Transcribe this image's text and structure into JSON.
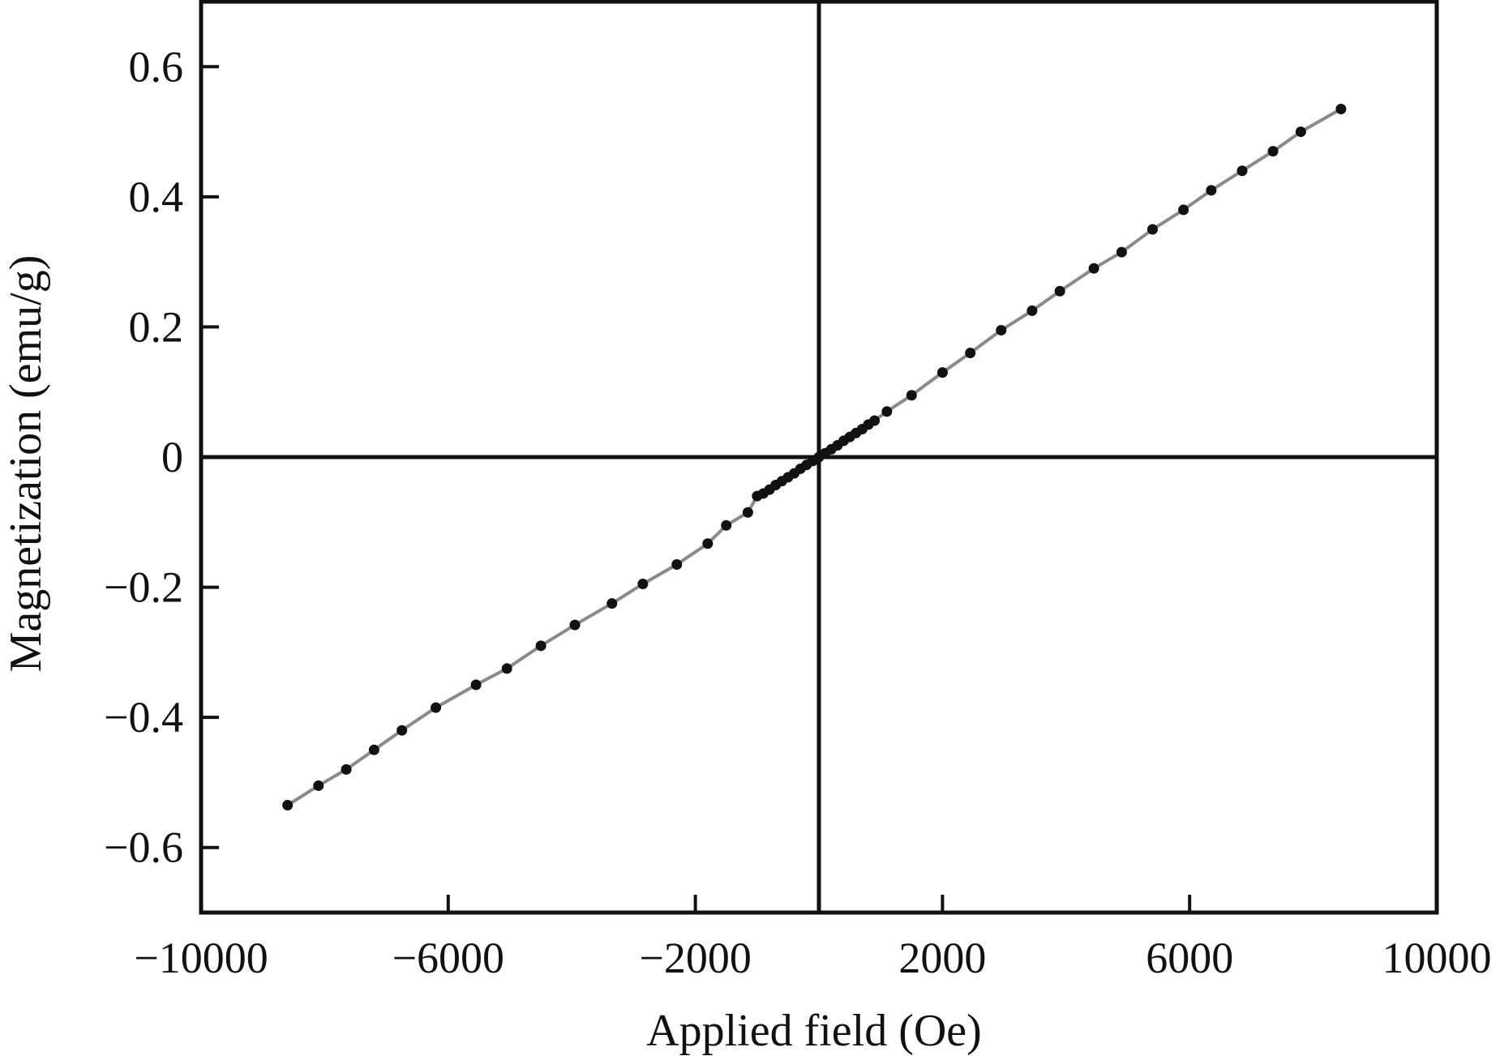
{
  "chart_data": {
    "type": "scatter",
    "title": "",
    "xlabel": "Applied field (Oe)",
    "ylabel": "Magnetization (emu/g)",
    "xlim": [
      -10000,
      10000
    ],
    "ylim": [
      -0.7,
      0.7
    ],
    "xticks": [
      -10000,
      -6000,
      -2000,
      2000,
      6000,
      10000
    ],
    "xtick_labels": [
      "−10000",
      "−6000",
      "−2000",
      "2000",
      "6000",
      "10000"
    ],
    "yticks": [
      0.6,
      0.4,
      0.2,
      0,
      -0.2,
      -0.4,
      -0.6
    ],
    "ytick_labels": [
      "0.6",
      "0.4",
      "0.2",
      "0",
      "−0.2",
      "−0.4",
      "−0.6"
    ],
    "zero_lines": true,
    "grid": false,
    "legend": "none",
    "line_color": "#8a8a8a",
    "marker_color": "#111111",
    "series": [
      {
        "x": [
          -8600,
          -8100,
          -7650,
          -7200,
          -6750,
          -6200,
          -5550,
          -5050,
          -4500,
          -3950,
          -3350,
          -2850,
          -2300,
          -1800,
          -1500,
          -1150,
          -1000,
          -900,
          -800,
          -700,
          -600,
          -500,
          -400,
          -300,
          -200,
          -100,
          0,
          100,
          200,
          300,
          400,
          500,
          600,
          700,
          800,
          900,
          1100,
          1500,
          2000,
          2450,
          2950,
          3450,
          3900,
          4450,
          4900,
          5400,
          5900,
          6350,
          6850,
          7350,
          7800,
          8450
        ],
        "y": [
          -0.535,
          -0.505,
          -0.48,
          -0.45,
          -0.42,
          -0.385,
          -0.35,
          -0.325,
          -0.29,
          -0.258,
          -0.225,
          -0.195,
          -0.165,
          -0.133,
          -0.105,
          -0.085,
          -0.06,
          -0.056,
          -0.05,
          -0.043,
          -0.037,
          -0.031,
          -0.025,
          -0.018,
          -0.012,
          -0.006,
          0.0,
          0.006,
          0.012,
          0.018,
          0.025,
          0.031,
          0.037,
          0.043,
          0.05,
          0.056,
          0.07,
          0.095,
          0.13,
          0.16,
          0.195,
          0.225,
          0.255,
          0.29,
          0.315,
          0.35,
          0.38,
          0.41,
          0.44,
          0.47,
          0.5,
          0.535
        ]
      }
    ]
  }
}
